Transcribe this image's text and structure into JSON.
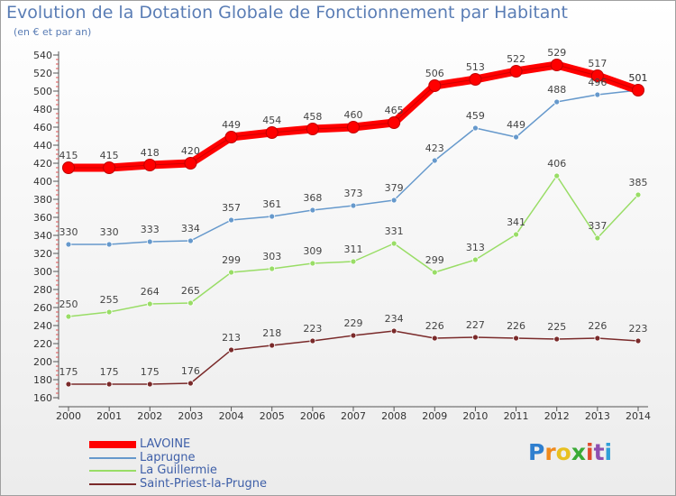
{
  "header": {
    "title": "Evolution de la Dotation Globale de Fonctionnement par Habitant",
    "subtitle": "(en € et par an)"
  },
  "brand": {
    "letters": [
      "P",
      "r",
      "o",
      "x",
      "i",
      "t",
      "i"
    ],
    "colors": [
      "#2f7fcf",
      "#f08a1c",
      "#e8c020",
      "#3aaa35",
      "#e04a2a",
      "#8e4fb0",
      "#2f9fd8"
    ]
  },
  "chart_data": {
    "type": "line",
    "title": "Evolution de la Dotation Globale de Fonctionnement par Habitant",
    "subtitle": "(en € et par an)",
    "xlabel": "",
    "ylabel": "",
    "x": [
      "2000",
      "2001",
      "2002",
      "2003",
      "2004",
      "2005",
      "2006",
      "2007",
      "2008",
      "2009",
      "2010",
      "2011",
      "2012",
      "2013",
      "2014"
    ],
    "ylim": [
      160,
      540
    ],
    "yticks": [
      160,
      180,
      200,
      220,
      240,
      260,
      280,
      300,
      320,
      340,
      360,
      380,
      400,
      420,
      440,
      460,
      480,
      500,
      520,
      540
    ],
    "grid": false,
    "legend_position": "bottom-left",
    "series": [
      {
        "name": "LAVOINE",
        "color": "#ff0000",
        "emphasis": true,
        "values": [
          415,
          415,
          418,
          420,
          449,
          454,
          458,
          460,
          465,
          506,
          513,
          522,
          529,
          517,
          501
        ]
      },
      {
        "name": "Laprugne",
        "color": "#6699cc",
        "values": [
          330,
          330,
          333,
          334,
          357,
          361,
          368,
          373,
          379,
          423,
          459,
          449,
          488,
          496,
          501
        ]
      },
      {
        "name": "La Guillermie",
        "color": "#99dd66",
        "values": [
          250,
          255,
          264,
          265,
          299,
          303,
          309,
          311,
          331,
          299,
          313,
          341,
          406,
          337,
          385
        ]
      },
      {
        "name": "Saint-Priest-la-Prugne",
        "color": "#7a2a2a",
        "values": [
          175,
          175,
          175,
          176,
          213,
          218,
          223,
          229,
          234,
          226,
          227,
          226,
          225,
          226,
          223
        ]
      }
    ]
  }
}
